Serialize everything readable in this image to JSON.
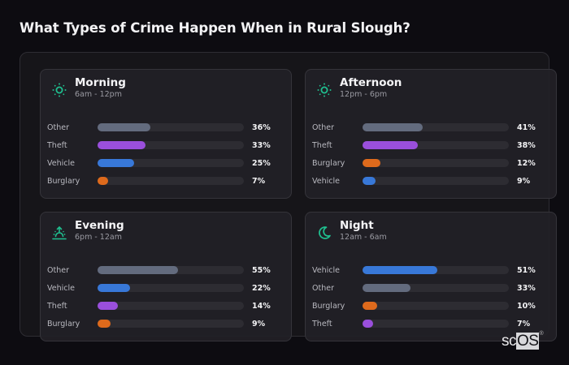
{
  "page": {
    "title": "What Types of Crime Happen When in Rural Slough?"
  },
  "colors": {
    "Other": "#636b7e",
    "Theft": "#9a4fdc",
    "Vehicle": "#3878d8",
    "Burglary": "#de6a1c",
    "icon_accent": "#1fbf8f"
  },
  "cards": [
    {
      "title": "Morning",
      "subtitle": "6am - 12pm",
      "icon": "sun-icon",
      "rows": [
        {
          "label": "Other",
          "value": 36,
          "display": "36%"
        },
        {
          "label": "Theft",
          "value": 33,
          "display": "33%"
        },
        {
          "label": "Vehicle",
          "value": 25,
          "display": "25%"
        },
        {
          "label": "Burglary",
          "value": 7,
          "display": "7%"
        }
      ]
    },
    {
      "title": "Afternoon",
      "subtitle": "12pm - 6pm",
      "icon": "sun-icon",
      "rows": [
        {
          "label": "Other",
          "value": 41,
          "display": "41%"
        },
        {
          "label": "Theft",
          "value": 38,
          "display": "38%"
        },
        {
          "label": "Burglary",
          "value": 12,
          "display": "12%"
        },
        {
          "label": "Vehicle",
          "value": 9,
          "display": "9%"
        }
      ]
    },
    {
      "title": "Evening",
      "subtitle": "6pm - 12am",
      "icon": "sunset-icon",
      "rows": [
        {
          "label": "Other",
          "value": 55,
          "display": "55%"
        },
        {
          "label": "Vehicle",
          "value": 22,
          "display": "22%"
        },
        {
          "label": "Theft",
          "value": 14,
          "display": "14%"
        },
        {
          "label": "Burglary",
          "value": 9,
          "display": "9%"
        }
      ]
    },
    {
      "title": "Night",
      "subtitle": "12am - 6am",
      "icon": "moon-icon",
      "rows": [
        {
          "label": "Vehicle",
          "value": 51,
          "display": "51%"
        },
        {
          "label": "Other",
          "value": 33,
          "display": "33%"
        },
        {
          "label": "Burglary",
          "value": 10,
          "display": "10%"
        },
        {
          "label": "Theft",
          "value": 7,
          "display": "7%"
        }
      ]
    }
  ],
  "logo": {
    "prefix": "sc",
    "highlight": "OS",
    "mark": "®"
  },
  "chart_data": [
    {
      "type": "bar",
      "title": "Morning",
      "subtitle": "6am - 12pm",
      "orientation": "horizontal",
      "categories": [
        "Other",
        "Theft",
        "Vehicle",
        "Burglary"
      ],
      "values": [
        36,
        33,
        25,
        7
      ],
      "unit": "%",
      "xlim": [
        0,
        100
      ]
    },
    {
      "type": "bar",
      "title": "Afternoon",
      "subtitle": "12pm - 6pm",
      "orientation": "horizontal",
      "categories": [
        "Other",
        "Theft",
        "Burglary",
        "Vehicle"
      ],
      "values": [
        41,
        38,
        12,
        9
      ],
      "unit": "%",
      "xlim": [
        0,
        100
      ]
    },
    {
      "type": "bar",
      "title": "Evening",
      "subtitle": "6pm - 12am",
      "orientation": "horizontal",
      "categories": [
        "Other",
        "Vehicle",
        "Theft",
        "Burglary"
      ],
      "values": [
        55,
        22,
        14,
        9
      ],
      "unit": "%",
      "xlim": [
        0,
        100
      ]
    },
    {
      "type": "bar",
      "title": "Night",
      "subtitle": "12am - 6am",
      "orientation": "horizontal",
      "categories": [
        "Vehicle",
        "Other",
        "Burglary",
        "Theft"
      ],
      "values": [
        51,
        33,
        10,
        7
      ],
      "unit": "%",
      "xlim": [
        0,
        100
      ]
    }
  ]
}
